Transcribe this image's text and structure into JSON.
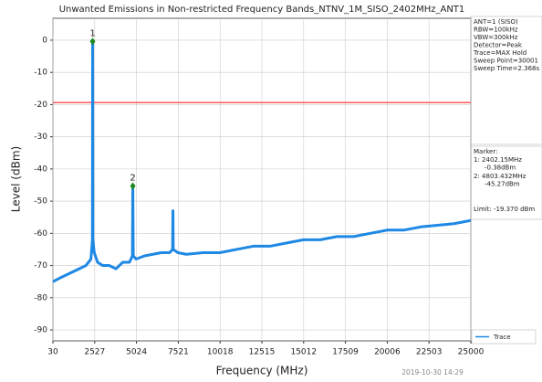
{
  "chart_data": {
    "type": "line",
    "title": "Unwanted Emissions in Non-restricted Frequency Bands_NTNV_1M_SISO_2402MHz_ANT1",
    "x_label": "Frequency (MHz)",
    "y_label": "Level (dBm)",
    "xlim": [
      30,
      25000
    ],
    "ylim": [
      -93.4,
      6.8
    ],
    "xticks": [
      30,
      2527,
      5024,
      7521,
      10018,
      12515,
      15012,
      17509,
      20006,
      22503,
      25000
    ],
    "yticks": [
      0,
      -10,
      -20,
      -30,
      -40,
      -50,
      -60,
      -70,
      -80,
      -90
    ],
    "grid": true,
    "trace": {
      "name": "Trace",
      "color": "#1e88e5",
      "x": [
        30,
        400,
        800,
        1200,
        1600,
        2000,
        2300,
        2390,
        2402.15,
        2415,
        2500,
        2700,
        3000,
        3400,
        3800,
        4200,
        4600,
        4780,
        4803.432,
        4830,
        5000,
        5500,
        6000,
        6500,
        7000,
        7180,
        7200,
        7220,
        7500,
        8000,
        9000,
        10000,
        11000,
        12000,
        13000,
        14000,
        15000,
        16000,
        17000,
        18000,
        19000,
        20000,
        21000,
        22000,
        23000,
        24000,
        25000
      ],
      "values": [
        -75,
        -74,
        -73,
        -72,
        -71,
        -70,
        -68,
        -62,
        -0.38,
        -62,
        -66,
        -69,
        -70,
        -70,
        -71,
        -69,
        -69,
        -67,
        -45.27,
        -67,
        -68,
        -67,
        -66.5,
        -66,
        -66,
        -65,
        -53,
        -65,
        -66,
        -66.5,
        -66,
        -66,
        -65,
        -64,
        -64,
        -63,
        -62,
        -62,
        -61,
        -61,
        -60,
        -59,
        -59,
        -58,
        -57.5,
        -57,
        -56
      ]
    },
    "limit": {
      "value": -19.37,
      "label": "Limit: -19.370 dBm",
      "color": "#ff5a5a"
    },
    "markers": [
      {
        "label": "1",
        "x": 2402.15,
        "y": -0.38,
        "x_label": "1: 2402.15MHz",
        "y_label": "-0.38dBm",
        "color": "#1a8a1a"
      },
      {
        "label": "2",
        "x": 4803.432,
        "y": -45.27,
        "x_label": "2: 4803.432MHz",
        "y_label": "-45.27dBm",
        "color": "#1a8a1a"
      }
    ],
    "marker_title": "Marker:",
    "info": [
      "ANT=1 (SISO)",
      "RBW=100kHz",
      "VBW=300kHz",
      "Detector=Peak",
      "Trace=MAX Hold",
      "Sweep Point=30001",
      "Sweep Time=2.368s"
    ],
    "timestamp": "2019-10-30 14:29"
  }
}
